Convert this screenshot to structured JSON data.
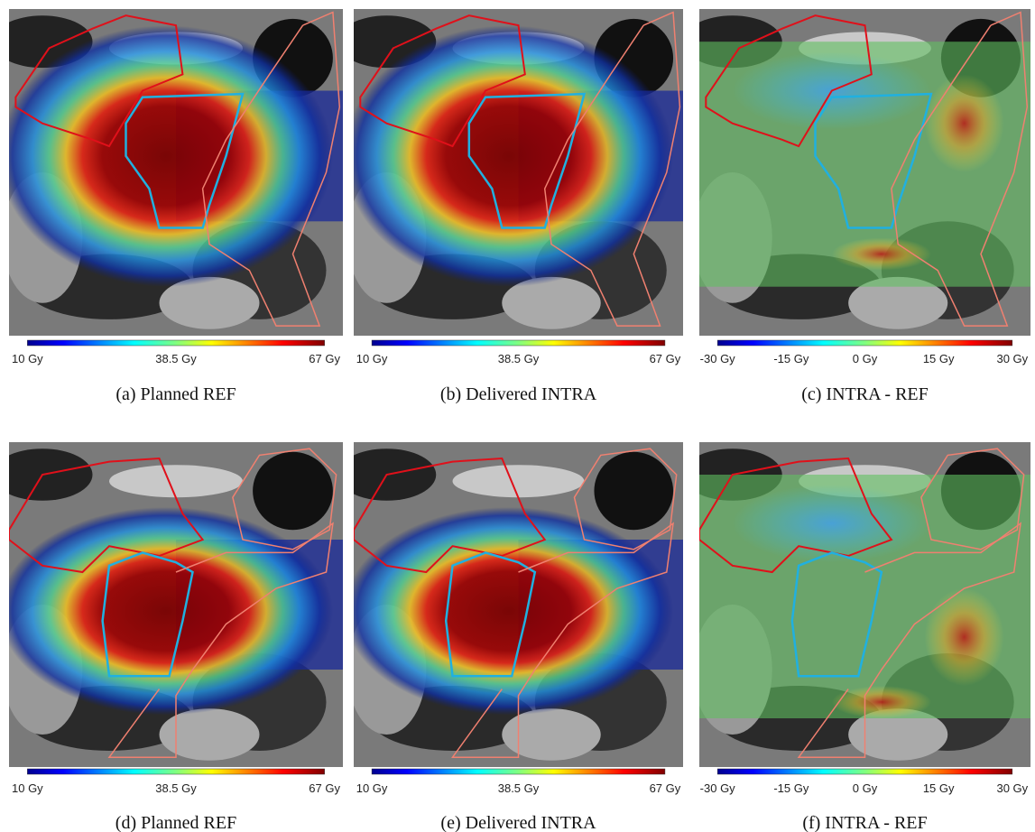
{
  "panels": [
    {
      "caption": "(a) Planned REF",
      "colorbar": {
        "ticks": [
          "10 Gy",
          "38.5 Gy",
          "67 Gy"
        ]
      }
    },
    {
      "caption": "(b) Delivered INTRA",
      "colorbar": {
        "ticks": [
          "10 Gy",
          "38.5 Gy",
          "67 Gy"
        ]
      }
    },
    {
      "caption": "(c) INTRA - REF",
      "colorbar": {
        "ticks": [
          "-30 Gy",
          "-15 Gy",
          "0 Gy",
          "15 Gy",
          "30 Gy"
        ]
      }
    },
    {
      "caption": "(d) Planned REF",
      "colorbar": {
        "ticks": [
          "10 Gy",
          "38.5 Gy",
          "67 Gy"
        ]
      }
    },
    {
      "caption": "(e) Delivered INTRA",
      "colorbar": {
        "ticks": [
          "10 Gy",
          "38.5 Gy",
          "67 Gy"
        ]
      }
    },
    {
      "caption": "(f) INTRA - REF",
      "colorbar": {
        "ticks": [
          "-30 Gy",
          "-15 Gy",
          "0 Gy",
          "15 Gy",
          "30 Gy"
        ]
      }
    }
  ]
}
